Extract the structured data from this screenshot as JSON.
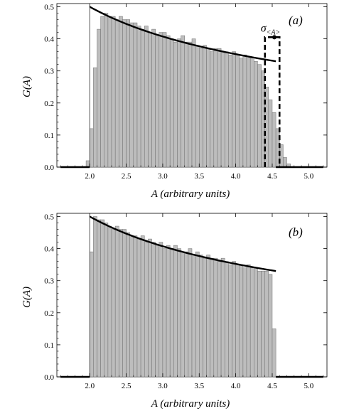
{
  "chart_data": [
    {
      "type": "bar",
      "panel_label": "(a)",
      "xlabel": "A (arbitrary units)",
      "ylabel": "G(A)",
      "xlim": [
        1.55,
        5.25
      ],
      "ylim": [
        0,
        0.51
      ],
      "xticks": [
        "2.0",
        "2.5",
        "3.0",
        "3.5",
        "4.0",
        "4.5",
        "5.0"
      ],
      "yticks": [
        "0.0",
        "0.1",
        "0.2",
        "0.3",
        "0.4",
        "0.5"
      ],
      "bin_start": 1.95,
      "bin_width": 0.05,
      "values": [
        0.02,
        0.12,
        0.31,
        0.43,
        0.47,
        0.48,
        0.47,
        0.47,
        0.46,
        0.47,
        0.46,
        0.46,
        0.45,
        0.45,
        0.44,
        0.43,
        0.44,
        0.42,
        0.43,
        0.41,
        0.42,
        0.42,
        0.41,
        0.4,
        0.39,
        0.4,
        0.41,
        0.39,
        0.39,
        0.4,
        0.38,
        0.37,
        0.38,
        0.37,
        0.36,
        0.37,
        0.37,
        0.36,
        0.36,
        0.35,
        0.36,
        0.35,
        0.34,
        0.35,
        0.34,
        0.34,
        0.33,
        0.32,
        0.3,
        0.25,
        0.21,
        0.17,
        0.12,
        0.07,
        0.03,
        0.01
      ],
      "fit": {
        "label": "",
        "x_start": 2.0,
        "x_end": 4.55,
        "y_start": 0.5,
        "y_end": 0.33
      },
      "baseline": [
        [
          1.6,
          2.0
        ],
        [
          4.55,
          5.2
        ]
      ],
      "sigma": {
        "label_main": "σ",
        "label_sub": "<A>",
        "x_start": 4.4,
        "x_end": 4.6,
        "y_top": 0.405
      }
    },
    {
      "type": "bar",
      "panel_label": "(b)",
      "xlabel": "A (arbitrary units)",
      "ylabel": "G(A)",
      "xlim": [
        1.55,
        5.25
      ],
      "ylim": [
        0,
        0.51
      ],
      "xticks": [
        "2.0",
        "2.5",
        "3.0",
        "3.5",
        "4.0",
        "4.5",
        "5.0"
      ],
      "yticks": [
        "0.0",
        "0.1",
        "0.2",
        "0.3",
        "0.4",
        "0.5"
      ],
      "bin_start": 2.0,
      "bin_width": 0.05,
      "values": [
        0.39,
        0.5,
        0.49,
        0.49,
        0.48,
        0.47,
        0.46,
        0.47,
        0.46,
        0.46,
        0.45,
        0.44,
        0.44,
        0.43,
        0.44,
        0.42,
        0.43,
        0.42,
        0.41,
        0.42,
        0.4,
        0.41,
        0.4,
        0.41,
        0.4,
        0.39,
        0.39,
        0.4,
        0.38,
        0.39,
        0.38,
        0.37,
        0.38,
        0.37,
        0.37,
        0.36,
        0.37,
        0.36,
        0.35,
        0.36,
        0.35,
        0.35,
        0.34,
        0.35,
        0.34,
        0.34,
        0.33,
        0.33,
        0.33,
        0.32,
        0.15
      ],
      "fit": {
        "label": "",
        "x_start": 2.0,
        "x_end": 4.55,
        "y_start": 0.5,
        "y_end": 0.33
      },
      "baseline": [
        [
          1.6,
          2.0
        ],
        [
          4.55,
          5.2
        ]
      ]
    }
  ]
}
